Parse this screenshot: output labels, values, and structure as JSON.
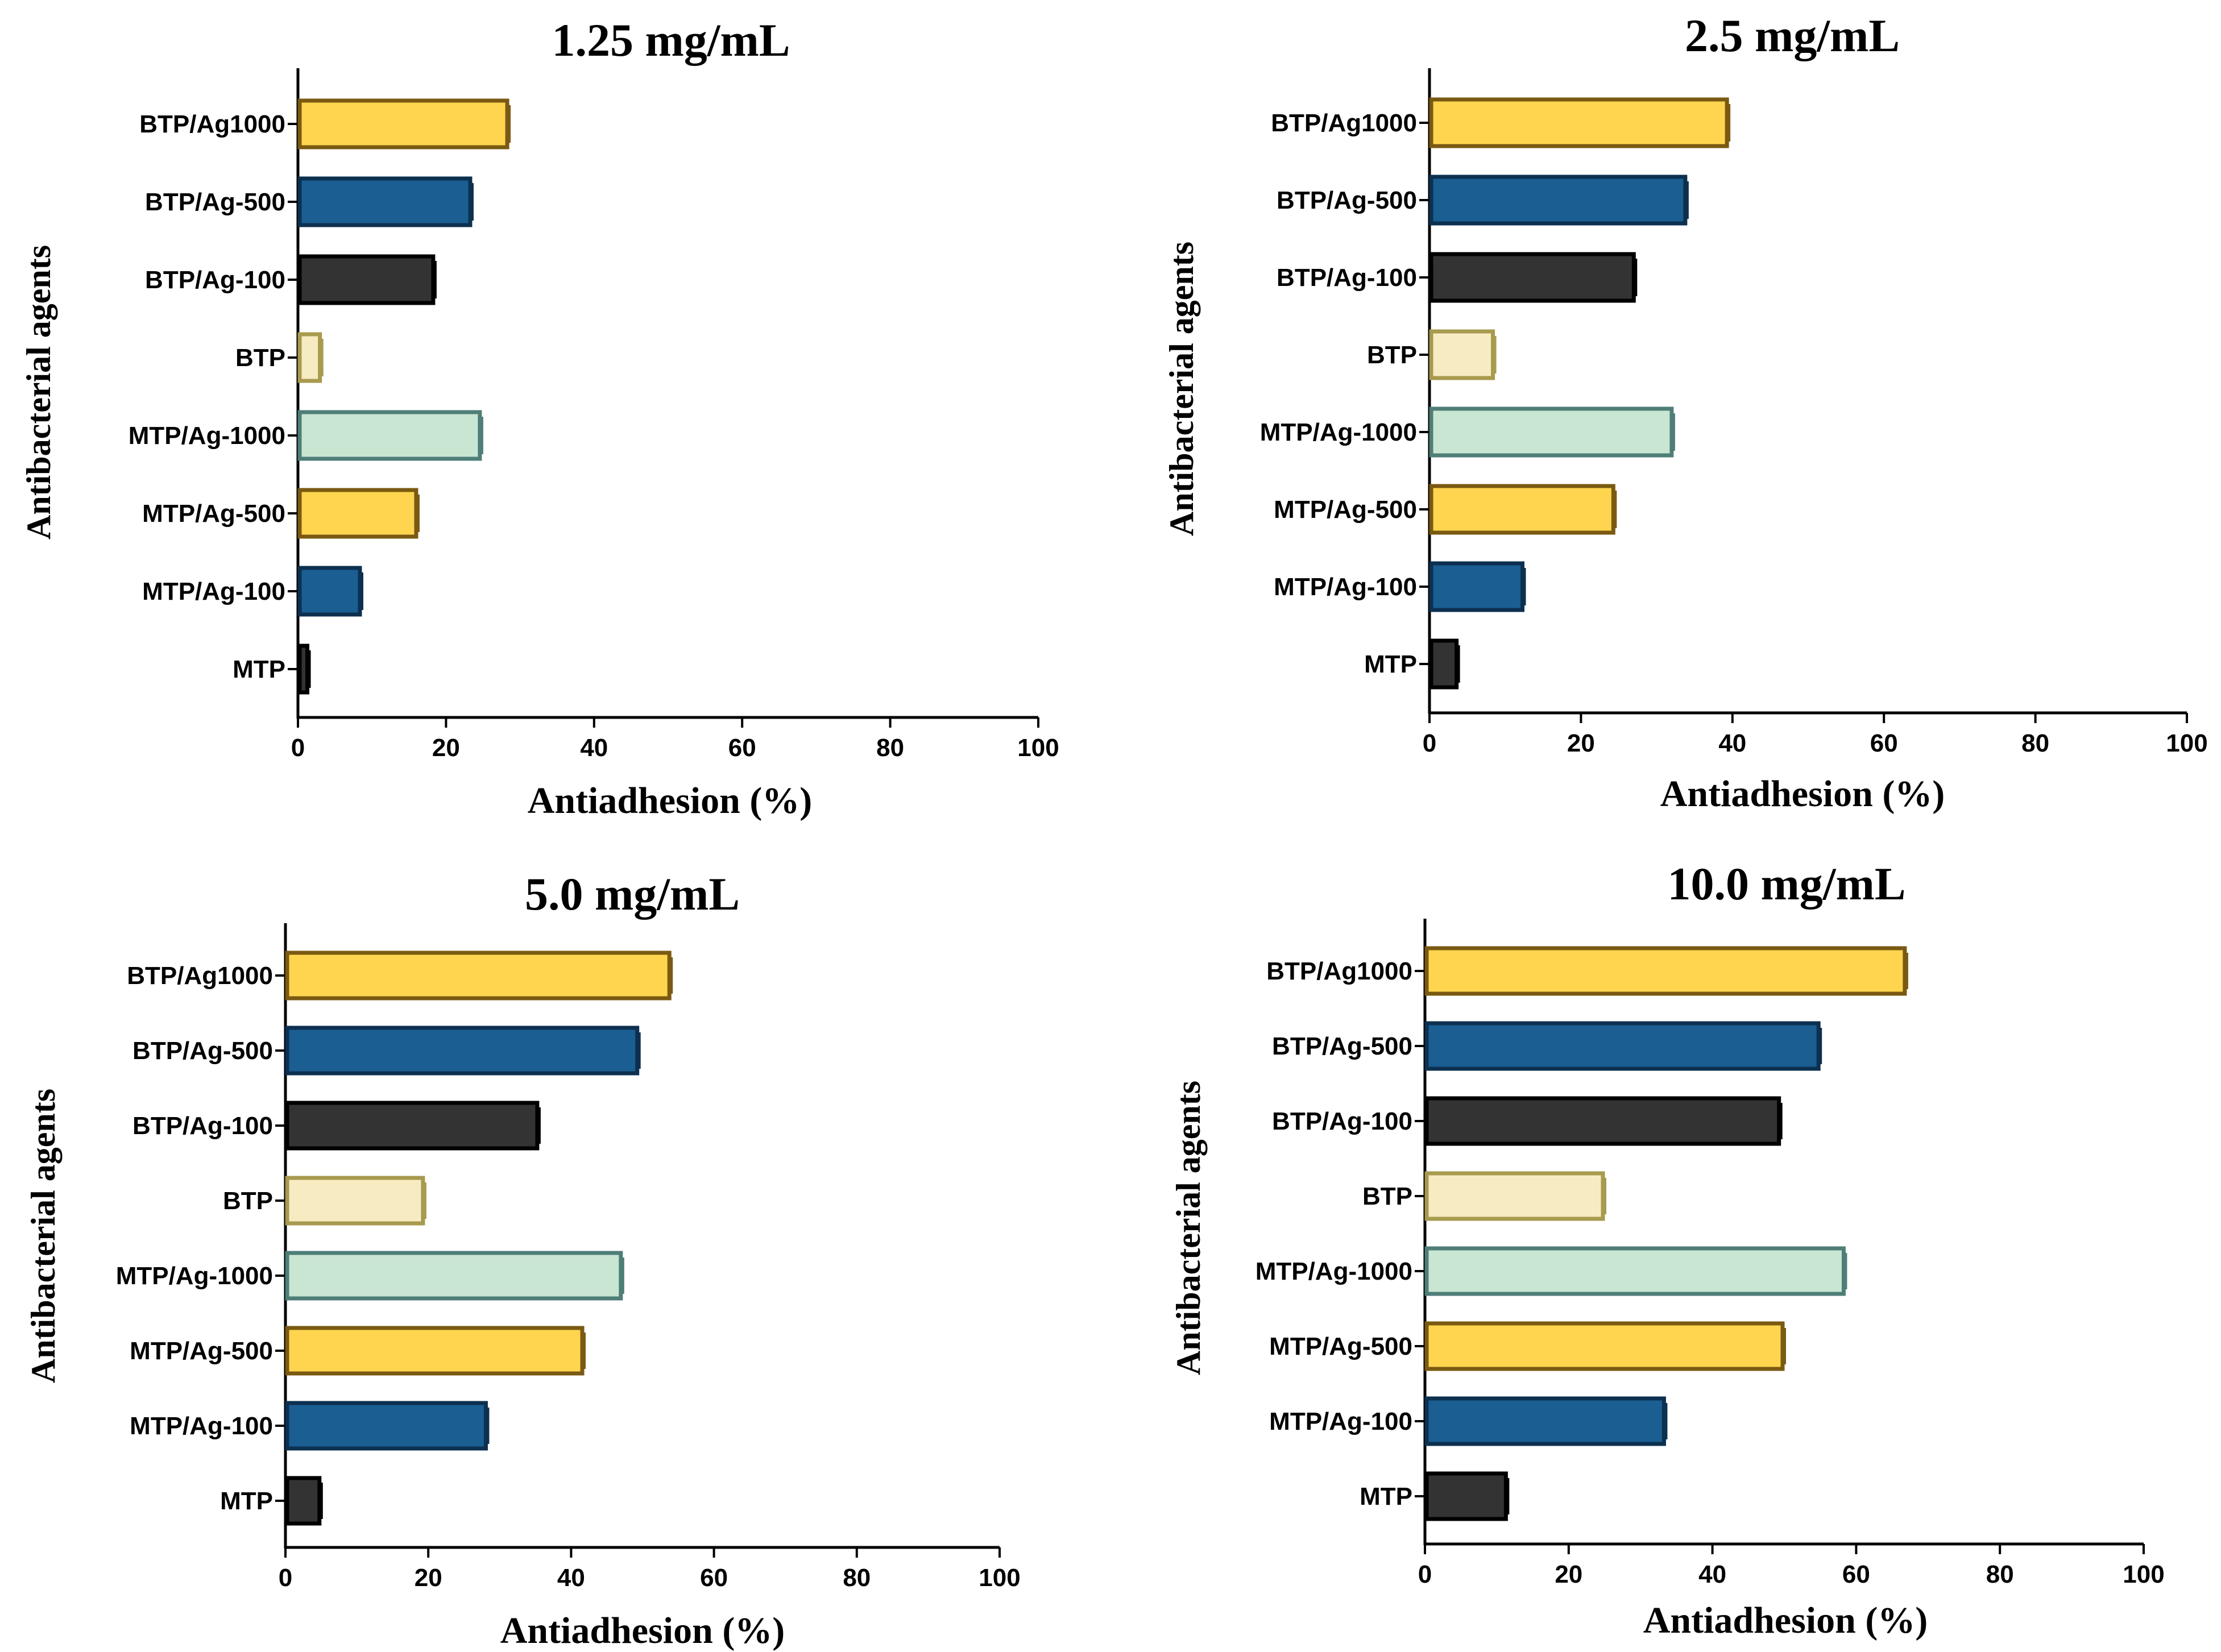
{
  "colors": {
    "gold": "#FFD54F",
    "gold_edge": "#7A5A12",
    "blue": "#1A5E92",
    "blue_edge": "#0D3050",
    "dark": "#333333",
    "dark_edge": "#000000",
    "cream": "#F7EBC2",
    "cream_edge": "#A89A4E",
    "mint": "#C9E6D2",
    "mint_edge": "#4F7E78"
  },
  "chart_data": [
    {
      "type": "bar",
      "orientation": "horizontal",
      "title": "1.25 mg/mL",
      "xlabel": "Antiadhesion (%)",
      "ylabel": "Antibacterial agents",
      "xlim": [
        0,
        100
      ],
      "xticks": [
        "0",
        "20",
        "40",
        "60",
        "80",
        "100"
      ],
      "categories": [
        "BTP/Ag1000",
        "BTP/Ag-500",
        "BTP/Ag-100",
        "BTP",
        "MTP/Ag-1000",
        "MTP/Ag-500",
        "MTP/Ag-100",
        "MTP"
      ],
      "bar_colors": [
        "gold",
        "blue",
        "dark",
        "cream",
        "mint",
        "gold",
        "blue",
        "dark"
      ],
      "values": [
        28.5,
        23.5,
        18.5,
        3.2,
        24.8,
        16.2,
        8.6,
        1.5
      ]
    },
    {
      "type": "bar",
      "orientation": "horizontal",
      "title": "2.5 mg/mL",
      "xlabel": "Antiadhesion (%)",
      "ylabel": "Antibacterial agents",
      "xlim": [
        0,
        100
      ],
      "xticks": [
        "0",
        "20",
        "40",
        "60",
        "80",
        "100"
      ],
      "categories": [
        "BTP/Ag1000",
        "BTP/Ag-500",
        "BTP/Ag-100",
        "BTP",
        "MTP/Ag-1000",
        "MTP/Ag-500",
        "MTP/Ag-100",
        "MTP"
      ],
      "bar_colors": [
        "gold",
        "blue",
        "dark",
        "cream",
        "mint",
        "gold",
        "blue",
        "dark"
      ],
      "values": [
        39.5,
        34.0,
        27.2,
        8.6,
        32.2,
        24.5,
        12.5,
        3.8
      ]
    },
    {
      "type": "bar",
      "orientation": "horizontal",
      "title": "5.0 mg/mL",
      "xlabel": "Antiadhesion (%)",
      "ylabel": "Antibacterial agents",
      "xlim": [
        0,
        100
      ],
      "xticks": [
        "0",
        "20",
        "40",
        "60",
        "80",
        "100"
      ],
      "categories": [
        "BTP/Ag1000",
        "BTP/Ag-500",
        "BTP/Ag-100",
        "BTP",
        "MTP/Ag-1000",
        "MTP/Ag-500",
        "MTP/Ag-100",
        "MTP"
      ],
      "bar_colors": [
        "gold",
        "blue",
        "dark",
        "cream",
        "mint",
        "gold",
        "blue",
        "dark"
      ],
      "values": [
        54.0,
        49.5,
        35.5,
        19.5,
        47.2,
        41.8,
        28.3,
        5.0
      ]
    },
    {
      "type": "bar",
      "orientation": "horizontal",
      "title": "10.0 mg/mL",
      "xlabel": "Antiadhesion (%)",
      "ylabel": "Antibacterial agents",
      "xlim": [
        0,
        100
      ],
      "xticks": [
        "0",
        "20",
        "40",
        "60",
        "80",
        "100"
      ],
      "categories": [
        "BTP/Ag1000",
        "BTP/Ag-500",
        "BTP/Ag-100",
        "BTP",
        "MTP/Ag-1000",
        "MTP/Ag-500",
        "MTP/Ag-100",
        "MTP"
      ],
      "bar_colors": [
        "gold",
        "blue",
        "dark",
        "cream",
        "mint",
        "gold",
        "blue",
        "dark"
      ],
      "values": [
        67.0,
        55.0,
        49.5,
        25.0,
        58.5,
        50.0,
        33.5,
        11.5
      ]
    }
  ]
}
